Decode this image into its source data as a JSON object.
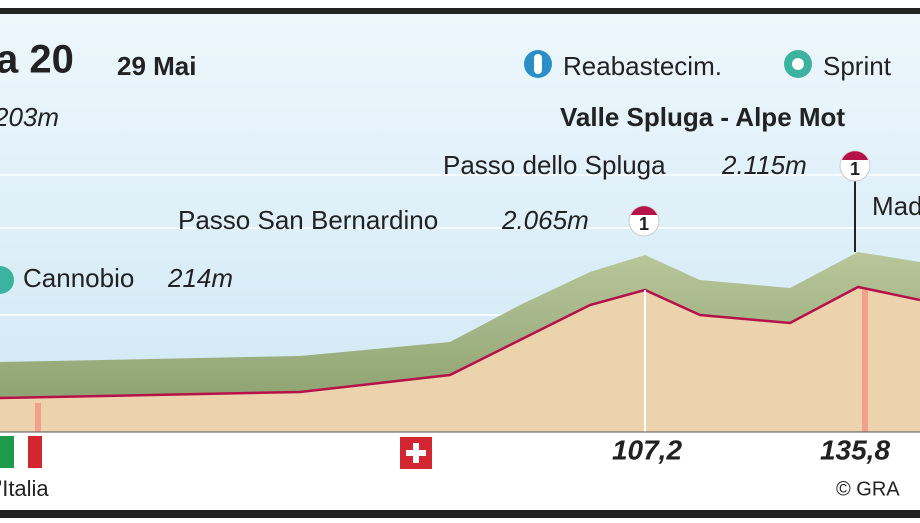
{
  "header": {
    "stage": "a 20",
    "date": "29 Mai",
    "start_altitude": "203m",
    "legend": [
      "Reabastecim.",
      "Sprint"
    ],
    "finish": "Valle Spluga - Alpe Mot"
  },
  "points": [
    {
      "name": "Passo dello Spluga",
      "altitude": "2.115m",
      "badge": "1"
    },
    {
      "name": "Passo San Bernardino",
      "altitude": "2.065m",
      "badge": "1"
    },
    {
      "name": "Cannobio",
      "altitude": "214m"
    },
    {
      "name": "Mad"
    }
  ],
  "distances": [
    "107,2",
    "135,8"
  ],
  "footer": {
    "country": "'Italia",
    "credit": "© GRA"
  }
}
